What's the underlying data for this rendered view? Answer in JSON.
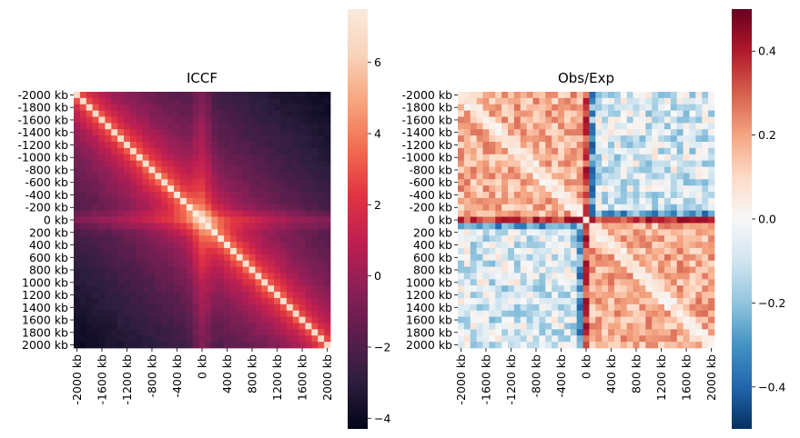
{
  "chart_data": [
    {
      "type": "heatmap",
      "title": "ICCF",
      "x_tick_labels": [
        "-2000 kb",
        "-1600 kb",
        "-1200 kb",
        "-800 kb",
        "-400 kb",
        "0 kb",
        "400 kb",
        "800 kb",
        "1200 kb",
        "1600 kb",
        "2000 kb"
      ],
      "y_tick_labels": [
        "-2000 kb",
        "-1800 kb",
        "-1600 kb",
        "-1400 kb",
        "-1200 kb",
        "-1000 kb",
        "-800 kb",
        "-600 kb",
        "-400 kb",
        "-200 kb",
        "0 kb",
        "200 kb",
        "400 kb",
        "600 kb",
        "800 kb",
        "1000 kb",
        "1200 kb",
        "1400 kb",
        "1600 kb",
        "1800 kb",
        "2000 kb"
      ],
      "colorbar": {
        "min": -4.3,
        "max": 7.5,
        "ticks": [
          -4,
          -2,
          0,
          2,
          4,
          6
        ],
        "tick_labels": [
          "−4",
          "−2",
          "0",
          "2",
          "4",
          "6"
        ],
        "colormap": "rocket"
      },
      "bins": 41,
      "value_range": [
        -4.3,
        7.5
      ],
      "pattern": "strong diagonal, cross enrichment at 0 kb, decays with distance"
    },
    {
      "type": "heatmap",
      "title": "Obs/Exp",
      "x_tick_labels": [
        "-2000 kb",
        "-1600 kb",
        "-1200 kb",
        "-800 kb",
        "-400 kb",
        "0 kb",
        "400 kb",
        "800 kb",
        "1200 kb",
        "1600 kb",
        "2000 kb"
      ],
      "y_tick_labels": [
        "-2000 kb",
        "-1800 kb",
        "-1600 kb",
        "-1400 kb",
        "-1200 kb",
        "-1000 kb",
        "-800 kb",
        "-600 kb",
        "-400 kb",
        "-200 kb",
        "0 kb",
        "200 kb",
        "400 kb",
        "600 kb",
        "800 kb",
        "1000 kb",
        "1200 kb",
        "1400 kb",
        "1600 kb",
        "1800 kb",
        "2000 kb"
      ],
      "colorbar": {
        "min": -0.5,
        "max": 0.5,
        "ticks": [
          -0.4,
          -0.2,
          0.0,
          0.2,
          0.4
        ],
        "tick_labels": [
          "−0.4",
          "−0.2",
          "0.0",
          "0.2",
          "0.4"
        ],
        "colormap": "RdBu_r"
      },
      "bins": 41,
      "value_range": [
        -0.5,
        0.5
      ],
      "pattern": "same-side quadrants enriched (red), opposite-side depleted (blue), strong line at 0 kb"
    }
  ],
  "colors": {
    "rocket": [
      "#03051a",
      "#2d1e3e",
      "#5a1e4d",
      "#8b1f57",
      "#be1f51",
      "#e13342",
      "#f26c4f",
      "#f6a47c",
      "#f8d2b9",
      "#faebdd"
    ],
    "rdbu": [
      "#053061",
      "#2166ac",
      "#4393c3",
      "#92c5de",
      "#d1e5f0",
      "#f7f7f7",
      "#fddbc7",
      "#f4a582",
      "#d6604d",
      "#b2182b",
      "#67001f"
    ]
  }
}
